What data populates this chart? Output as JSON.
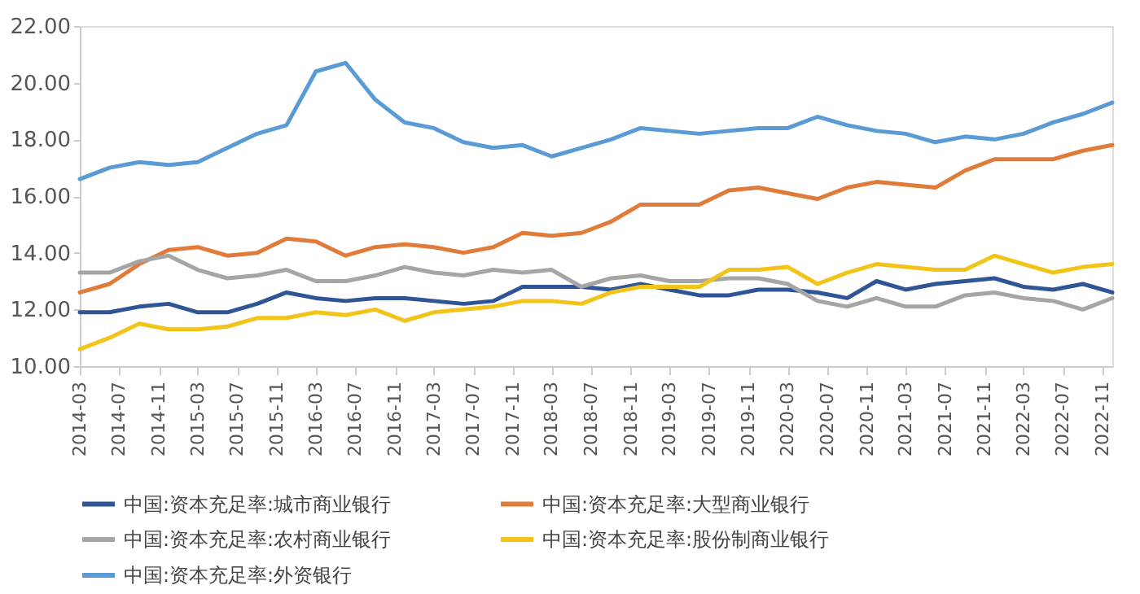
{
  "chart_data": {
    "type": "line",
    "x": [
      "2014-03",
      "2014-06",
      "2014-09",
      "2014-12",
      "2015-03",
      "2015-06",
      "2015-09",
      "2015-12",
      "2016-03",
      "2016-06",
      "2016-09",
      "2016-12",
      "2017-03",
      "2017-06",
      "2017-09",
      "2017-12",
      "2018-03",
      "2018-06",
      "2018-09",
      "2018-12",
      "2019-03",
      "2019-06",
      "2019-09",
      "2019-12",
      "2020-03",
      "2020-06",
      "2020-09",
      "2020-12",
      "2021-03",
      "2021-06",
      "2021-09",
      "2021-12",
      "2022-03",
      "2022-06",
      "2022-09",
      "2022-12"
    ],
    "series": [
      {
        "name": "中国:资本充足率:城市商业银行",
        "color": "#2f5597",
        "values": [
          11.9,
          11.9,
          12.1,
          12.2,
          11.9,
          11.9,
          12.2,
          12.6,
          12.4,
          12.3,
          12.4,
          12.4,
          12.3,
          12.2,
          12.3,
          12.8,
          12.8,
          12.8,
          12.7,
          12.9,
          12.7,
          12.5,
          12.5,
          12.7,
          12.7,
          12.6,
          12.4,
          13.0,
          12.7,
          12.9,
          13.0,
          13.1,
          12.8,
          12.7,
          12.9,
          12.6
        ]
      },
      {
        "name": "中国:资本充足率:大型商业银行",
        "color": "#e07b39",
        "values": [
          12.6,
          12.9,
          13.6,
          14.1,
          14.2,
          13.9,
          14.0,
          14.5,
          14.4,
          13.9,
          14.2,
          14.3,
          14.2,
          14.0,
          14.2,
          14.7,
          14.6,
          14.7,
          15.1,
          15.7,
          15.7,
          15.7,
          16.2,
          16.3,
          16.1,
          15.9,
          16.3,
          16.5,
          16.4,
          16.3,
          16.9,
          17.3,
          17.3,
          17.3,
          17.6,
          17.8
        ]
      },
      {
        "name": "中国:资本充足率:农村商业银行",
        "color": "#a5a5a5",
        "values": [
          13.3,
          13.3,
          13.7,
          13.9,
          13.4,
          13.1,
          13.2,
          13.4,
          13.0,
          13.0,
          13.2,
          13.5,
          13.3,
          13.2,
          13.4,
          13.3,
          13.4,
          12.8,
          13.1,
          13.2,
          13.0,
          13.0,
          13.1,
          13.1,
          12.9,
          12.3,
          12.1,
          12.4,
          12.1,
          12.1,
          12.5,
          12.6,
          12.4,
          12.3,
          12.0,
          12.4
        ]
      },
      {
        "name": "中国:资本充足率:股份制商业银行",
        "color": "#f2c318",
        "values": [
          10.6,
          11.0,
          11.5,
          11.3,
          11.3,
          11.4,
          11.7,
          11.7,
          11.9,
          11.8,
          12.0,
          11.6,
          11.9,
          12.0,
          12.1,
          12.3,
          12.3,
          12.2,
          12.6,
          12.8,
          12.8,
          12.8,
          13.4,
          13.4,
          13.5,
          12.9,
          13.3,
          13.6,
          13.5,
          13.4,
          13.4,
          13.9,
          13.6,
          13.3,
          13.5,
          13.6
        ]
      },
      {
        "name": "中国:资本充足率:外资银行",
        "color": "#5b9bd5",
        "values": [
          16.6,
          17.0,
          17.2,
          17.1,
          17.2,
          17.7,
          18.2,
          18.5,
          20.4,
          20.7,
          19.4,
          18.6,
          18.4,
          17.9,
          17.7,
          17.8,
          17.4,
          17.7,
          18.0,
          18.4,
          18.3,
          18.2,
          18.3,
          18.4,
          18.4,
          18.8,
          18.5,
          18.3,
          18.2,
          17.9,
          18.1,
          18.0,
          18.2,
          18.6,
          18.9,
          19.3
        ]
      }
    ],
    "xlim": [
      "2014-03",
      "2022-12"
    ],
    "xticks": [
      "2014-03",
      "2014-07",
      "2014-11",
      "2015-03",
      "2015-07",
      "2015-11",
      "2016-03",
      "2016-07",
      "2016-11",
      "2017-03",
      "2017-07",
      "2017-11",
      "2018-03",
      "2018-07",
      "2018-11",
      "2019-03",
      "2019-07",
      "2019-11",
      "2020-03",
      "2020-07",
      "2020-11",
      "2021-03",
      "2021-07",
      "2021-11",
      "2022-03",
      "2022-07",
      "2022-11"
    ],
    "ylim": [
      10,
      22
    ],
    "yticks": [
      {
        "value": 10,
        "label": "10.00"
      },
      {
        "value": 12,
        "label": "12.00"
      },
      {
        "value": 14,
        "label": "14.00"
      },
      {
        "value": 16,
        "label": "16.00"
      },
      {
        "value": 18,
        "label": "18.00"
      },
      {
        "value": 20,
        "label": "20.00"
      },
      {
        "value": 22,
        "label": "22.00"
      }
    ],
    "grid": false,
    "legend": "bottom",
    "marker": "none",
    "line_style": "solid"
  }
}
